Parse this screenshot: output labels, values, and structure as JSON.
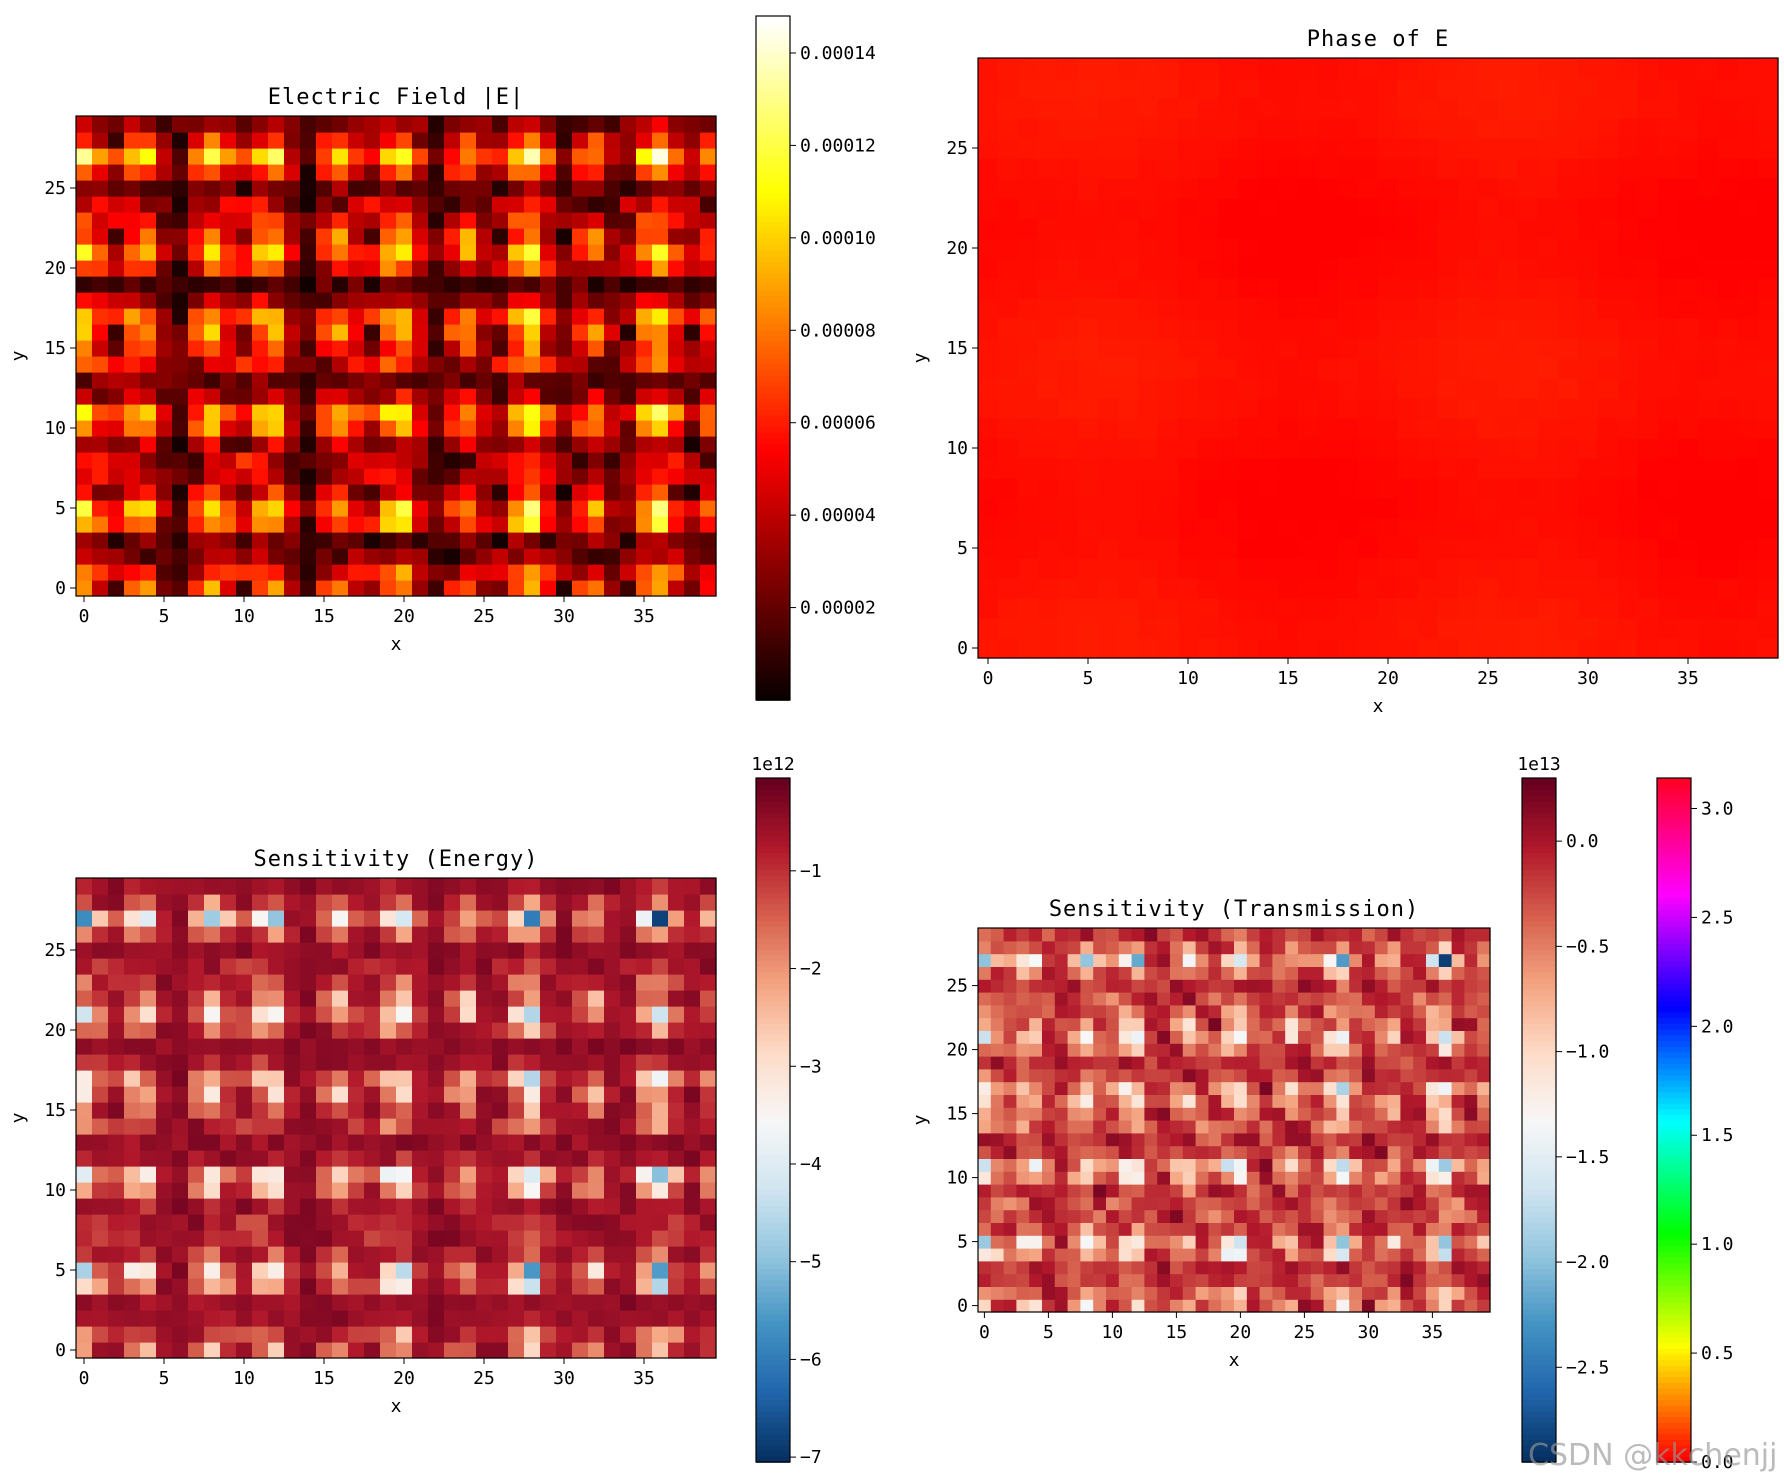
{
  "chart_data": [
    {
      "type": "heatmap",
      "title": "Electric Field |E|",
      "xlabel": "x",
      "ylabel": "y",
      "grid_size": [
        40,
        30
      ],
      "xlim": [
        -0.5,
        39.5
      ],
      "ylim": [
        -0.5,
        29.5
      ],
      "xticks": [
        0,
        5,
        10,
        15,
        20,
        25,
        30,
        35
      ],
      "yticks": [
        0,
        5,
        10,
        15,
        20,
        25
      ],
      "colormap": "hot",
      "field": "magnitude",
      "colorbar": {
        "range": [
          0.0,
          0.000148
        ],
        "ticks": [
          2e-05,
          4e-05,
          6e-05,
          8e-05,
          0.0001,
          0.00012,
          0.00014
        ],
        "tick_labels": [
          "0.00002",
          "0.00004",
          "0.00006",
          "0.00008",
          "0.00010",
          "0.00012",
          "0.00014"
        ],
        "offset": ""
      }
    },
    {
      "type": "heatmap",
      "title": "Phase of E",
      "xlabel": "x",
      "ylabel": "y",
      "grid_size": [
        40,
        30
      ],
      "xlim": [
        -0.5,
        39.5
      ],
      "ylim": [
        -0.5,
        29.5
      ],
      "xticks": [
        0,
        5,
        10,
        15,
        20,
        25,
        30,
        35
      ],
      "yticks": [
        0,
        5,
        10,
        15,
        20,
        25
      ],
      "colormap": "hsv",
      "field": "phase",
      "colorbar": {
        "range": [
          0.0,
          3.14
        ],
        "ticks": [
          0.0,
          0.5,
          1.0,
          1.5,
          2.0,
          2.5,
          3.0
        ],
        "tick_labels": [
          "0.0",
          "0.5",
          "1.0",
          "1.5",
          "2.0",
          "2.5",
          "3.0"
        ],
        "offset": ""
      }
    },
    {
      "type": "heatmap",
      "title": "Sensitivity (Energy)",
      "xlabel": "x",
      "ylabel": "y",
      "grid_size": [
        40,
        30
      ],
      "xlim": [
        -0.5,
        39.5
      ],
      "ylim": [
        -0.5,
        29.5
      ],
      "xticks": [
        0,
        5,
        10,
        15,
        20,
        25,
        30,
        35
      ],
      "yticks": [
        0,
        5,
        10,
        15,
        20,
        25
      ],
      "colormap": "RdBu",
      "field": "energy_sensitivity",
      "colorbar": {
        "range": [
          -7.05,
          -0.05
        ],
        "ticks": [
          -1,
          -2,
          -3,
          -4,
          -5,
          -6,
          -7
        ],
        "tick_labels": [
          "−1",
          "−2",
          "−3",
          "−4",
          "−5",
          "−6",
          "−7"
        ],
        "offset": "1e12"
      }
    },
    {
      "type": "heatmap",
      "title": "Sensitivity (Transmission)",
      "xlabel": "x",
      "ylabel": "y",
      "grid_size": [
        40,
        30
      ],
      "xlim": [
        -0.5,
        39.5
      ],
      "ylim": [
        -0.5,
        29.5
      ],
      "xticks": [
        0,
        5,
        10,
        15,
        20,
        25,
        30,
        35
      ],
      "yticks": [
        0,
        5,
        10,
        15,
        20,
        25
      ],
      "colormap": "RdBu",
      "field": "transmission_sensitivity",
      "colorbar": {
        "range": [
          -2.95,
          0.3
        ],
        "ticks": [
          0.0,
          -0.5,
          -1.0,
          -1.5,
          -2.0,
          -2.5
        ],
        "tick_labels": [
          "0.0",
          "−0.5",
          "−1.0",
          "−1.5",
          "−2.0",
          "−2.5"
        ],
        "offset": "1e13"
      }
    }
  ],
  "watermark": "CSDN @kkchenjj",
  "colors": {
    "axes_frame": "#000000",
    "text": "#000000",
    "background": "#ffffff"
  }
}
